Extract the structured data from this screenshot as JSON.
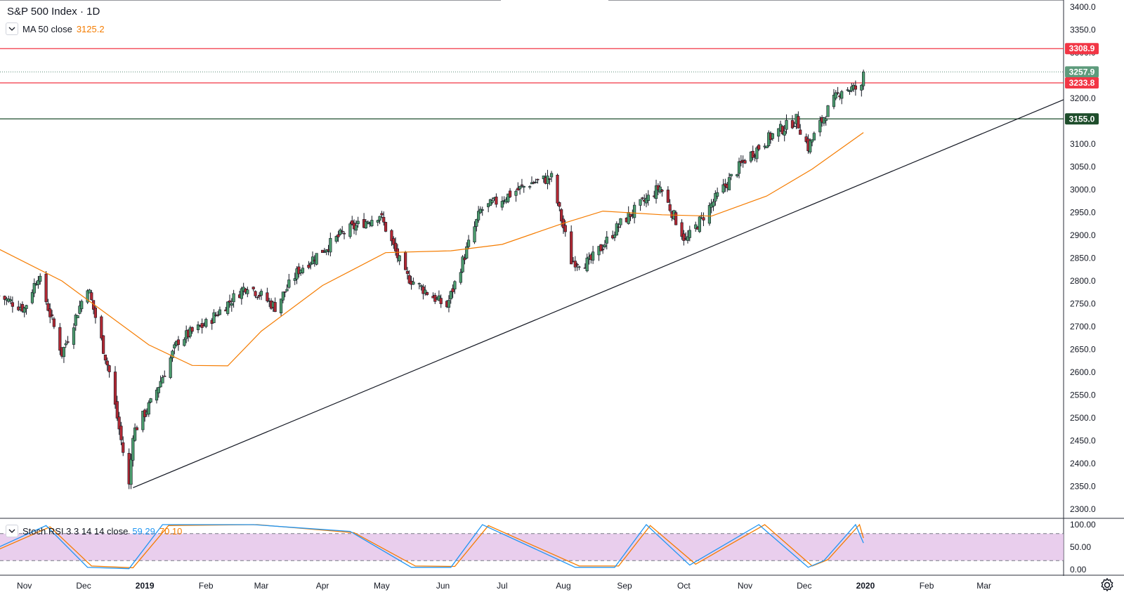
{
  "header": {
    "symbol_title": "S&P 500 Index · 1D",
    "ma_label": "MA 50 close",
    "ma_value": "3125.2"
  },
  "rsi_panel": {
    "label": "Stoch RSI 3 3 14 14 close",
    "k_value": "59.29",
    "d_value": "70.10",
    "ticks": [
      "100.00",
      "50.00",
      "0.00"
    ]
  },
  "price_axis": {
    "ticks": [
      "3400.0",
      "3350.0",
      "3300.0",
      "3250.0",
      "3200.0",
      "3150.0",
      "3100.0",
      "3050.0",
      "3000.0",
      "2950.0",
      "2900.0",
      "2850.0",
      "2800.0",
      "2750.0",
      "2700.0",
      "2650.0",
      "2600.0",
      "2550.0",
      "2500.0",
      "2450.0",
      "2400.0",
      "2350.0",
      "2300.0"
    ]
  },
  "time_axis": {
    "labels": [
      "Nov",
      "Dec",
      "2019",
      "Feb",
      "Mar",
      "Apr",
      "May",
      "Jun",
      "Jul",
      "Aug",
      "Sep",
      "Oct",
      "Nov",
      "Dec",
      "2020",
      "Feb",
      "Mar"
    ]
  },
  "price_labels": [
    {
      "value": 3308.9,
      "text": "3308.9",
      "color": "#f23645"
    },
    {
      "value": 3257.9,
      "text": "3257.9",
      "color": "#5d9b7c"
    },
    {
      "value": 3233.8,
      "text": "3233.8",
      "color": "#f23645"
    },
    {
      "value": 3155.0,
      "text": "3155.0",
      "color": "#1e4d2b"
    }
  ],
  "colors": {
    "up": "#26a69a",
    "up_fill": "#4c9c6e",
    "down": "#b22833",
    "wick": "#131722",
    "ma": "#f57c00",
    "resistance": "#f23645",
    "support": "#1e4d2b",
    "trend": "#131722",
    "rsi_k": "#2196f3",
    "rsi_d": "#f57c00",
    "rsi_band": "#e1bee7"
  },
  "chart_data": {
    "type": "line",
    "title": "S&P 500 Index · 1D",
    "xlabel": "",
    "ylabel": "",
    "ylim": [
      2300,
      3400
    ],
    "x_range": [
      "2018-10-20",
      "2020-03-25"
    ],
    "grid": false,
    "series": [
      {
        "name": "S&P 500 Index",
        "x": [
          "2018-10-19",
          "2018-11-01",
          "2018-11-08",
          "2018-11-20",
          "2018-12-03",
          "2018-12-14",
          "2018-12-24",
          "2018-12-26",
          "2019-01-04",
          "2019-01-18",
          "2019-02-01",
          "2019-02-22",
          "2019-03-08",
          "2019-03-20",
          "2019-04-12",
          "2019-04-30",
          "2019-05-13",
          "2019-05-31",
          "2019-06-03",
          "2019-06-20",
          "2019-07-15",
          "2019-07-26",
          "2019-08-05",
          "2019-08-14",
          "2019-08-30",
          "2019-09-19",
          "2019-10-02",
          "2019-10-18",
          "2019-11-01",
          "2019-11-15",
          "2019-11-27",
          "2019-12-03",
          "2019-12-12",
          "2019-12-20",
          "2019-12-30",
          "2019-12-31"
        ],
        "y": [
          2767,
          2740,
          2813,
          2641,
          2790,
          2600,
          2351,
          2467,
          2532,
          2670,
          2706,
          2792,
          2743,
          2824,
          2907,
          2946,
          2812,
          2752,
          2745,
          2954,
          3014,
          3026,
          2844,
          2840,
          2926,
          3006,
          2887,
          2986,
          3066,
          3120,
          3153,
          3093,
          3168,
          3221,
          3221,
          3258
        ]
      },
      {
        "name": "MA 50 close",
        "x": [
          "2018-10-19",
          "2018-11-20",
          "2019-01-03",
          "2019-01-25",
          "2019-02-12",
          "2019-03-01",
          "2019-04-01",
          "2019-05-03",
          "2019-06-05",
          "2019-07-01",
          "2019-07-31",
          "2019-08-21",
          "2019-09-20",
          "2019-10-15",
          "2019-11-12",
          "2019-12-05",
          "2019-12-31"
        ],
        "y": [
          2870,
          2800,
          2660,
          2615,
          2614,
          2690,
          2790,
          2862,
          2866,
          2880,
          2925,
          2953,
          2945,
          2942,
          2986,
          3045,
          3125
        ]
      },
      {
        "name": "Stoch RSI %K",
        "x": [
          "2018-10-19",
          "2018-11-12",
          "2018-12-03",
          "2018-12-24",
          "2019-01-10",
          "2019-02-25",
          "2019-04-15",
          "2019-05-16",
          "2019-06-05",
          "2019-06-21",
          "2019-08-07",
          "2019-08-27",
          "2019-09-12",
          "2019-10-04",
          "2019-11-08",
          "2019-12-03",
          "2019-12-11",
          "2019-12-27",
          "2019-12-31"
        ],
        "y": [
          50,
          98,
          5,
          2,
          100,
          100,
          85,
          5,
          5,
          100,
          5,
          5,
          100,
          10,
          100,
          5,
          20,
          100,
          59.29
        ]
      },
      {
        "name": "Stoch RSI %D",
        "x": [
          "2018-10-19",
          "2018-11-14",
          "2018-12-05",
          "2018-12-26",
          "2019-01-13",
          "2019-02-27",
          "2019-04-17",
          "2019-05-18",
          "2019-06-07",
          "2019-06-24",
          "2019-08-09",
          "2019-08-29",
          "2019-09-14",
          "2019-10-07",
          "2019-11-11",
          "2019-12-05",
          "2019-12-13",
          "2019-12-29",
          "2019-12-31"
        ],
        "y": [
          45,
          95,
          8,
          4,
          98,
          100,
          82,
          8,
          7,
          98,
          8,
          8,
          98,
          12,
          100,
          8,
          22,
          100,
          70.1
        ]
      }
    ],
    "levels": [
      {
        "name": "resistance",
        "value": 3308.9
      },
      {
        "name": "resistance",
        "value": 3233.8
      },
      {
        "name": "support",
        "value": 3155.0
      },
      {
        "name": "last",
        "value": 3257.9
      }
    ],
    "trendline": {
      "from": [
        "2018-12-26",
        2347
      ],
      "to": [
        "2020-03-25",
        3197
      ]
    },
    "rsi_ylim": [
      0,
      100
    ],
    "rsi_bands": [
      20,
      80
    ]
  }
}
